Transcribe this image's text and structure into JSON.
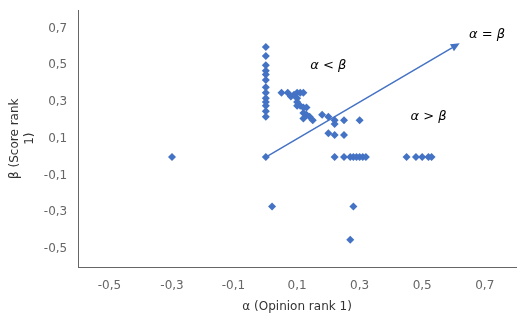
{
  "chart_data": {
    "type": "scatter",
    "xlabel": "α (Opinion rank 1)",
    "ylabel": [
      "β (Score rank",
      "1)"
    ],
    "x": [
      0.0,
      0.0,
      0.0,
      0.0,
      0.0,
      0.0,
      0.0,
      0.0,
      0.0,
      0.0,
      0.0,
      0.0,
      0.0,
      0.0,
      0.05,
      0.07,
      0.08,
      0.09,
      0.1,
      0.11,
      0.12,
      0.1,
      0.1,
      0.1,
      0.11,
      0.12,
      0.13,
      0.12,
      0.13,
      0.14,
      0.12,
      0.15,
      0.18,
      0.2,
      0.22,
      0.22,
      0.25,
      0.3,
      0.2,
      0.22,
      0.25,
      0.22,
      0.25,
      0.27,
      0.28,
      0.29,
      0.3,
      0.31,
      0.32,
      0.45,
      0.48,
      0.5,
      0.52,
      0.53,
      -0.3,
      0.28,
      0.27,
      0.02
    ],
    "values": [
      0.6,
      0.55,
      0.5,
      0.47,
      0.45,
      0.42,
      0.38,
      0.35,
      0.32,
      0.3,
      0.28,
      0.25,
      0.22,
      0.0,
      0.35,
      0.35,
      0.33,
      0.34,
      0.35,
      0.35,
      0.35,
      0.32,
      0.3,
      0.28,
      0.28,
      0.27,
      0.27,
      0.24,
      0.23,
      0.22,
      0.21,
      0.2,
      0.23,
      0.22,
      0.2,
      0.18,
      0.2,
      0.2,
      0.13,
      0.12,
      0.12,
      0.0,
      0.0,
      0.0,
      0.0,
      0.0,
      0.0,
      0.0,
      0.0,
      0.0,
      0.0,
      0.0,
      0.0,
      0.0,
      0.0,
      -0.27,
      -0.45,
      -0.27
    ],
    "color": "#4472C4",
    "marker": "diamond",
    "xlim": [
      -0.6,
      0.8
    ],
    "ylim": [
      -0.6,
      0.8
    ],
    "xticks": [
      {
        "value": -0.5,
        "label": "-0,5"
      },
      {
        "value": -0.3,
        "label": "-0,3"
      },
      {
        "value": -0.1,
        "label": "-0,1 "
      },
      {
        "value": 0.1,
        "label": "0,1"
      },
      {
        "value": 0.3,
        "label": "0,3"
      },
      {
        "value": 0.5,
        "label": "0,5"
      },
      {
        "value": 0.7,
        "label": "0,7"
      }
    ],
    "yticks": [
      {
        "value": -0.5,
        "label": "-0,5"
      },
      {
        "value": -0.3,
        "label": "-0,3"
      },
      {
        "value": -0.1,
        "label": "-0,1"
      },
      {
        "value": 0.1,
        "label": "0,1"
      },
      {
        "value": 0.3,
        "label": "0,3"
      },
      {
        "value": 0.5,
        "label": "0,5"
      },
      {
        "value": 0.7,
        "label": "0,7"
      }
    ],
    "grid": false,
    "annotations": [
      {
        "text": "α < β",
        "x": 0.2,
        "y": 0.5
      },
      {
        "text": "α > β",
        "x": 0.52,
        "y": 0.22
      },
      {
        "text": "α = β",
        "x": 0.65,
        "y": 0.63,
        "arrow_from": [
          0.0,
          0.0
        ],
        "arrow_to": [
          0.62,
          0.62
        ]
      }
    ]
  }
}
